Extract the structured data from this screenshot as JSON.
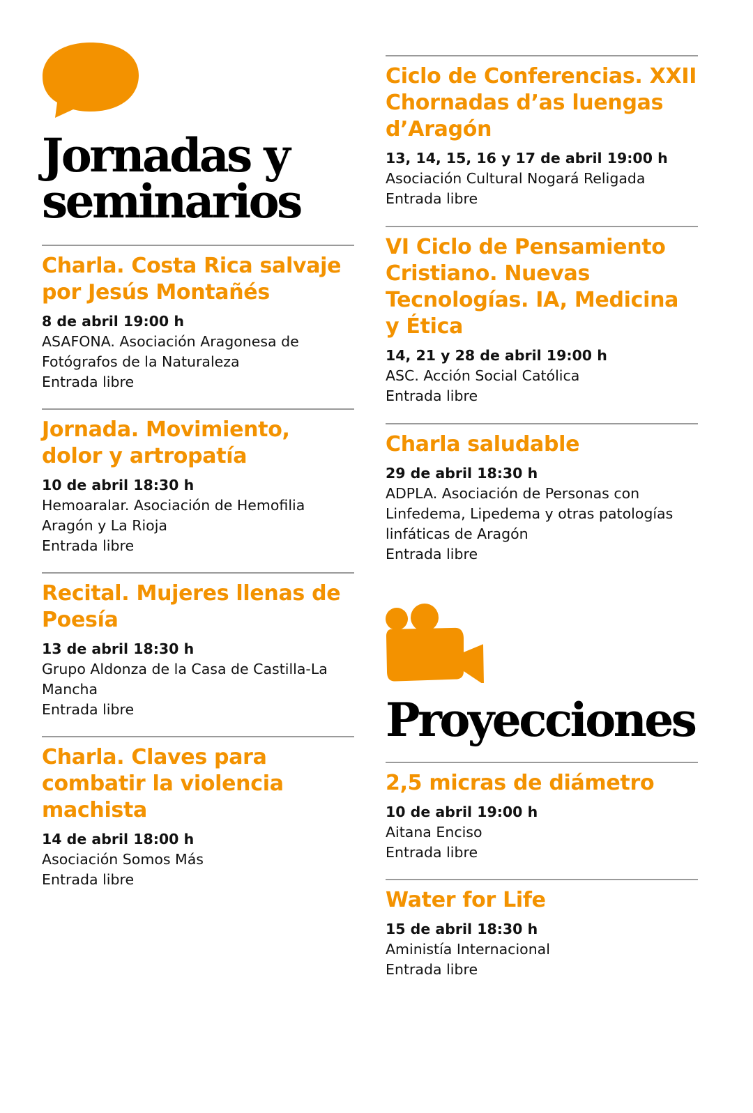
{
  "accent_color": "#F39200",
  "left": {
    "icon": "speech-bubble-icon",
    "heading": "Jornadas y seminarios",
    "heading_lines": [
      "Jornadas y",
      "seminarios"
    ],
    "entries": [
      {
        "title": "Charla. Costa Rica salvaje por Jesús Montañés",
        "date": "8 de abril 19:00 h",
        "lines": [
          "ASAFONA. Asociación Aragonesa de Fotógrafos de la Naturaleza",
          "Entrada libre"
        ]
      },
      {
        "title": "Jornada. Movimiento, dolor y artropatía",
        "date": "10 de abril 18:30 h",
        "lines": [
          "Hemoaralar. Asociación de Hemofilia Aragón y La Rioja",
          "Entrada libre"
        ]
      },
      {
        "title": "Recital. Mujeres llenas de Poesía",
        "date": "13 de abril 18:30 h",
        "lines": [
          "Grupo Aldonza de la Casa de Castilla-La Mancha",
          "Entrada libre"
        ]
      },
      {
        "title": "Charla. Claves para combatir la violencia machista",
        "date": "14 de abril 18:00 h",
        "lines": [
          "Asociación Somos Más",
          "Entrada libre"
        ]
      }
    ]
  },
  "right": {
    "entries": [
      {
        "title": "Ciclo de Conferencias. XXII Chornadas d’as luengas d’Aragón",
        "date": "13, 14, 15, 16 y 17 de abril 19:00 h",
        "lines": [
          "Asociación Cultural Nogará Religada",
          "Entrada libre"
        ]
      },
      {
        "title": "VI Ciclo de Pensamiento Cristiano. Nuevas Tecnologías. IA, Medicina y Ética",
        "date": "14, 21 y 28 de abril 19:00 h",
        "lines": [
          "ASC. Acción Social Católica",
          "Entrada libre"
        ]
      },
      {
        "title": "Charla saludable",
        "date": "29 de abril 18:30 h",
        "lines": [
          "ADPLA. Asociación de Personas con Linfedema, Lipedema y otras patologías linfáticas de Aragón",
          "Entrada libre"
        ]
      }
    ],
    "projections": {
      "icon": "film-camera-icon",
      "heading": "Proyecciones",
      "entries": [
        {
          "title": "2,5 micras de diámetro",
          "date": "10 de abril 19:00 h",
          "lines": [
            "Aitana Enciso",
            "Entrada libre"
          ]
        },
        {
          "title": "Water for Life",
          "date": "15 de abril 18:30 h",
          "lines": [
            "Aministía Internacional",
            "Entrada libre"
          ]
        }
      ]
    }
  }
}
